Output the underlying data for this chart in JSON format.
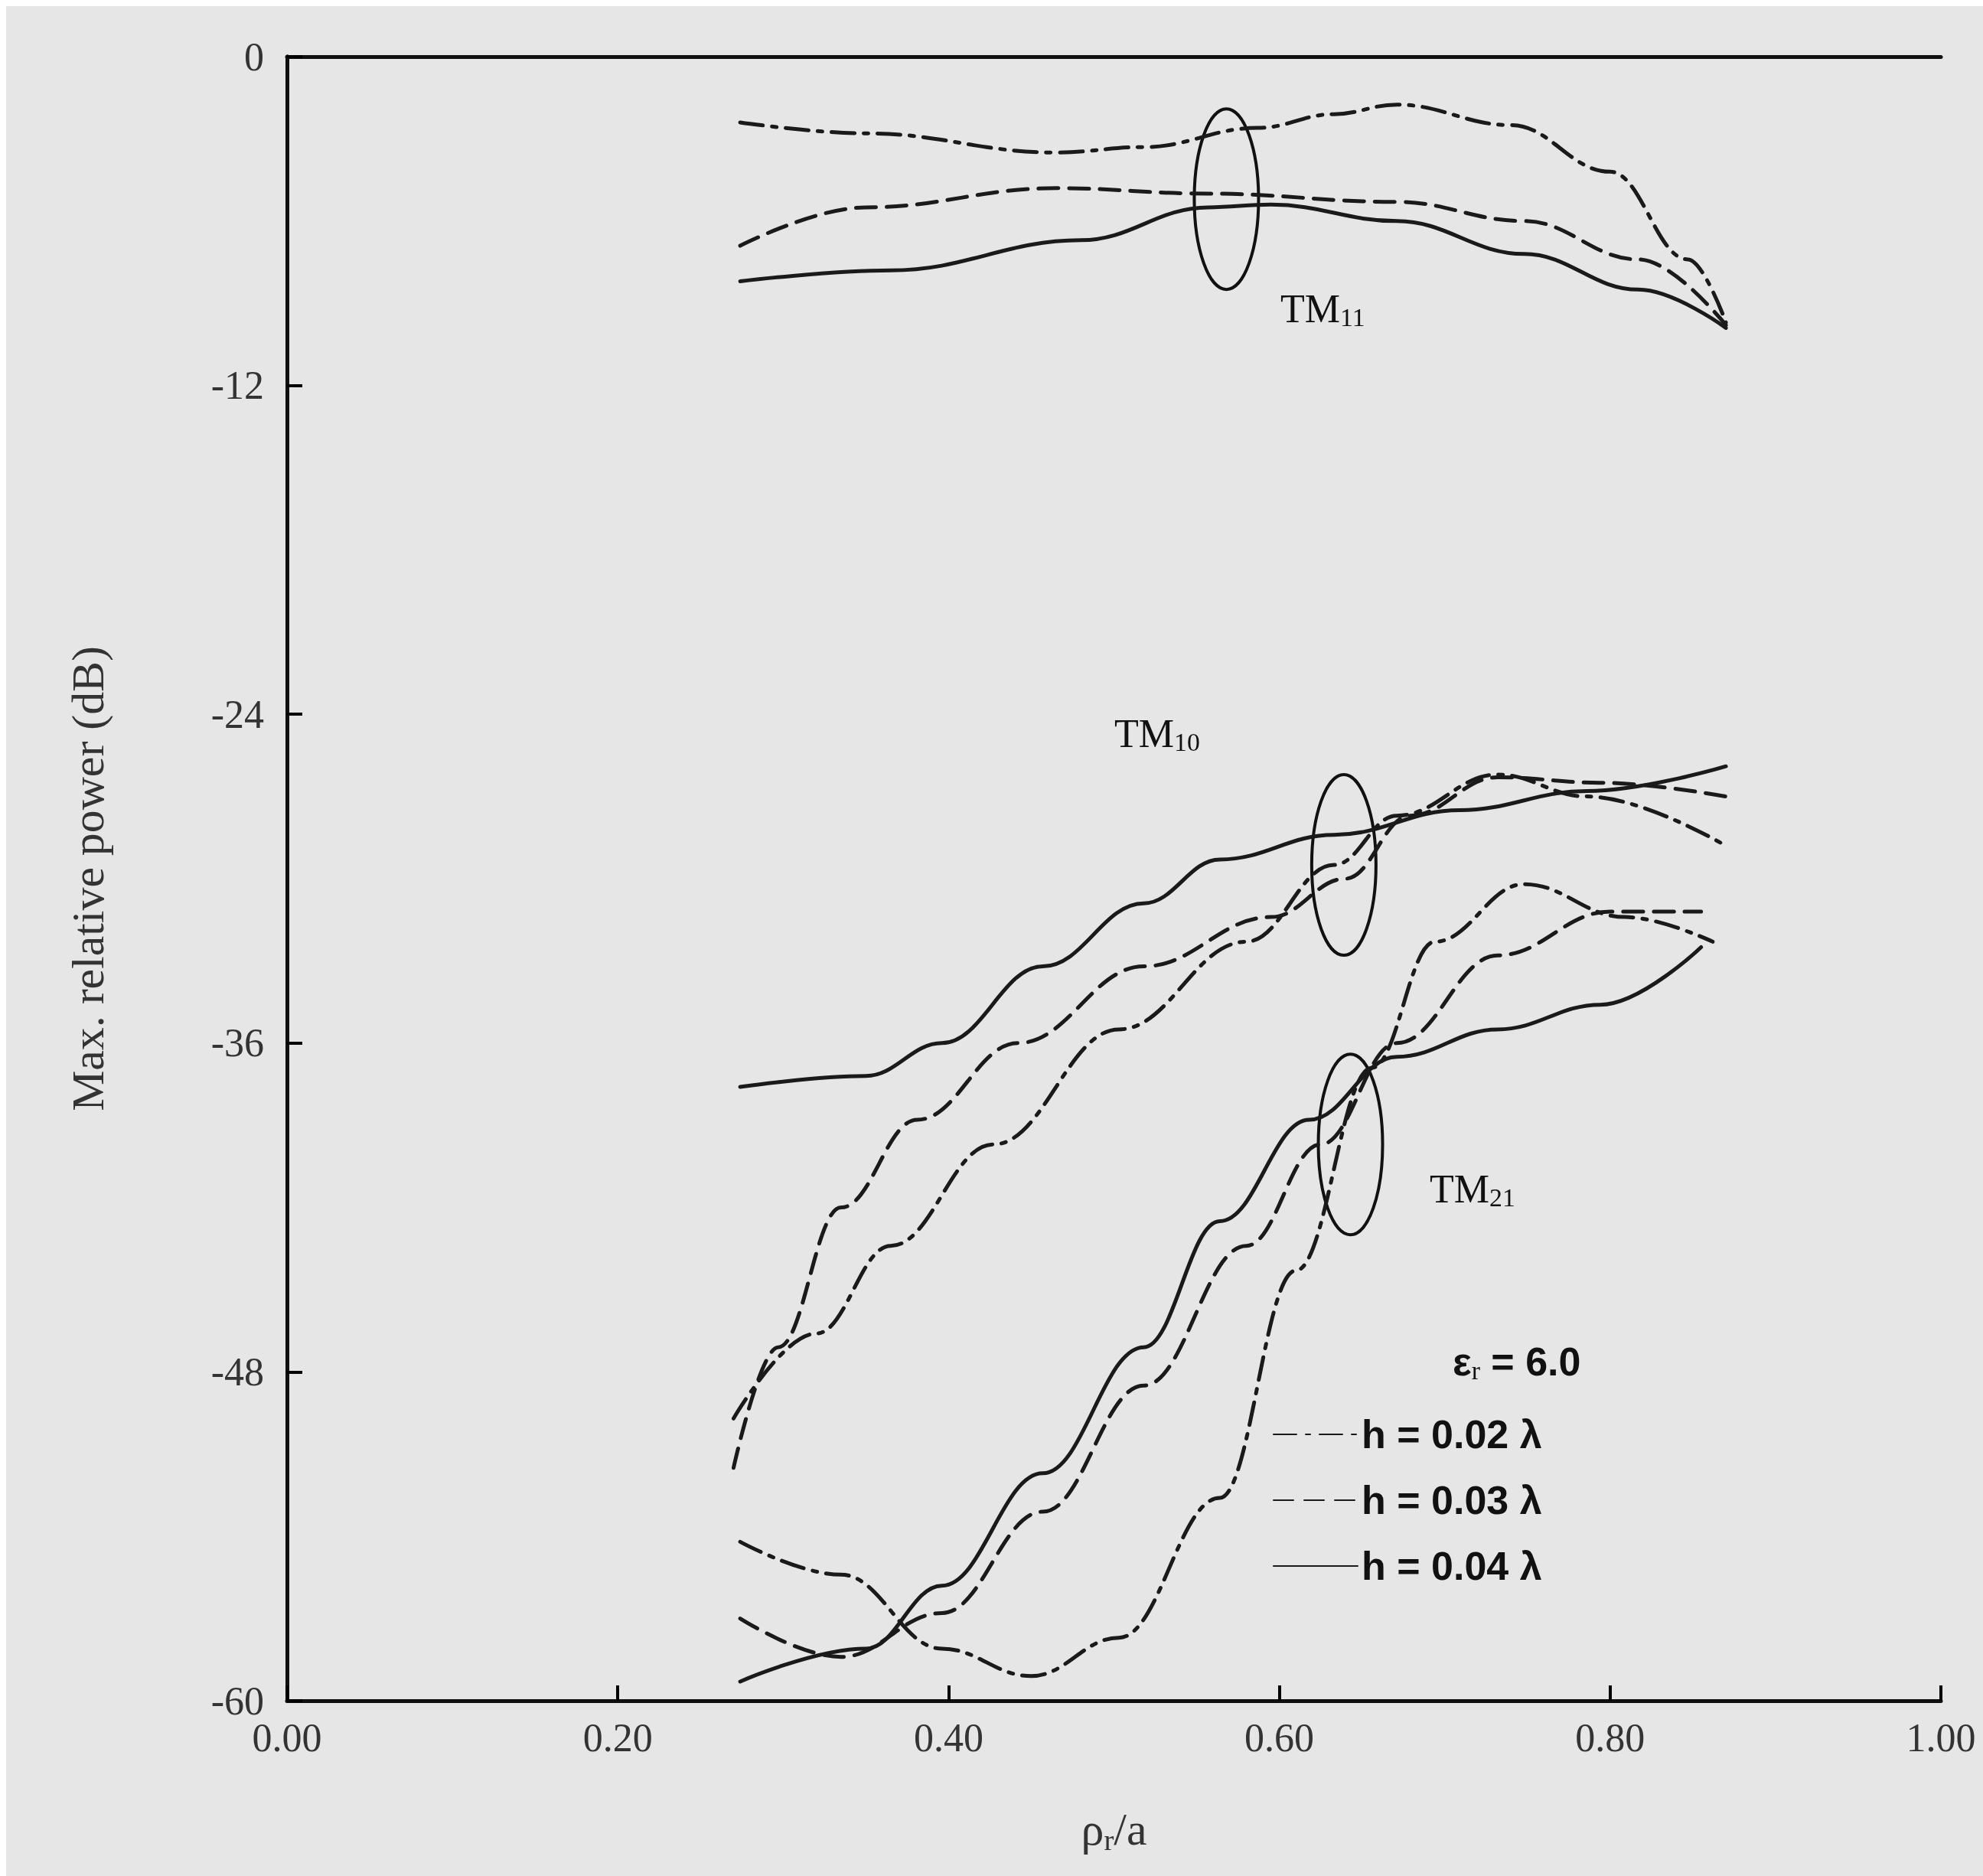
{
  "chart_data": {
    "type": "line",
    "xlabel": "ρ$_{r}$/a",
    "ylabel": "Max. relative power (dB)",
    "xlim": [
      0,
      1
    ],
    "xticks": [
      {
        "value": 0,
        "label": "0.00"
      },
      {
        "value": 0.2,
        "label": "0.20"
      },
      {
        "value": 0.4,
        "label": "0.40"
      },
      {
        "value": 0.6,
        "label": "0.60"
      },
      {
        "value": 0.8,
        "label": "0.80"
      },
      {
        "value": 1,
        "label": "1.00"
      }
    ],
    "ylim": [
      -60,
      0
    ],
    "yticks": [
      0,
      -12,
      -24,
      -36,
      -48,
      -60
    ],
    "grid": false,
    "legend": "bottom right",
    "legend_title": "ε$_{r}$ = 6.0",
    "marker": "none",
    "annotations": [
      "TM$_{11}$",
      "TM$_{10}$",
      "TM$_{21}$"
    ],
    "series": [
      {
        "name": "h = 0.02 λ",
        "color": "#1a1a1a",
        "line_style": "dashdot",
        "x": [
          0.274,
          0.35,
          0.465,
          0.518,
          0.587,
          0.633,
          0.671,
          0.74,
          0.8,
          0.847,
          0.87
        ],
        "values": [
          -2.4,
          -2.8,
          -3.5,
          -3.3,
          -2.6,
          -2.1,
          -1.75,
          -2.5,
          -4.2,
          -7.4,
          -9.7
        ]
      },
      {
        "name": "h = 0.03 λ",
        "color": "#1a1a1a",
        "line_style": "dashed",
        "x": [
          0.274,
          0.35,
          0.465,
          0.557,
          0.671,
          0.748,
          0.817,
          0.87
        ],
        "values": [
          -6.9,
          -5.5,
          -4.8,
          -5.0,
          -5.3,
          -6.0,
          -7.4,
          -9.8
        ]
      },
      {
        "name": "h = 0.04 λ",
        "color": "#1a1a1a",
        "line_style": "solid",
        "x": [
          0.274,
          0.365,
          0.48,
          0.557,
          0.595,
          0.671,
          0.748,
          0.817,
          0.87
        ],
        "values": [
          -8.2,
          -7.8,
          -6.7,
          -5.5,
          -5.4,
          -6.0,
          -7.2,
          -8.5,
          -9.9
        ]
      },
      {
        "color": "#1a1a1a",
        "line_style": "dashdot",
        "x": [
          0.27,
          0.32,
          0.365,
          0.427,
          0.503,
          0.58,
          0.633,
          0.671,
          0.732,
          0.786,
          0.87
        ],
        "values": [
          -49.7,
          -46.6,
          -43.4,
          -39.7,
          -35.5,
          -32.3,
          -29.5,
          -27.7,
          -26.2,
          -27.0,
          -28.8
        ]
      },
      {
        "color": "#1a1a1a",
        "line_style": "dashed",
        "x": [
          0.27,
          0.297,
          0.335,
          0.381,
          0.442,
          0.518,
          0.595,
          0.64,
          0.679,
          0.732,
          0.794,
          0.87
        ],
        "values": [
          -51.5,
          -47.1,
          -42.0,
          -38.8,
          -36.0,
          -33.2,
          -31.4,
          -30.0,
          -27.7,
          -26.3,
          -26.5,
          -27.0
        ]
      },
      {
        "color": "#1a1a1a",
        "line_style": "solid",
        "x": [
          0.274,
          0.35,
          0.396,
          0.457,
          0.518,
          0.564,
          0.633,
          0.709,
          0.786,
          0.87
        ],
        "values": [
          -37.6,
          -37.2,
          -36.0,
          -33.2,
          -30.9,
          -29.3,
          -28.4,
          -27.5,
          -26.8,
          -25.9
        ]
      },
      {
        "color": "#1a1a1a",
        "line_style": "dashdot",
        "x": [
          0.274,
          0.335,
          0.396,
          0.45,
          0.503,
          0.564,
          0.61,
          0.656,
          0.694,
          0.748,
          0.809,
          0.862
        ],
        "values": [
          -54.2,
          -55.4,
          -58.1,
          -59.1,
          -57.7,
          -52.6,
          -44.3,
          -36.9,
          -32.3,
          -30.2,
          -31.4,
          -32.3
        ]
      },
      {
        "color": "#1a1a1a",
        "line_style": "dashed",
        "x": [
          0.274,
          0.335,
          0.396,
          0.457,
          0.518,
          0.58,
          0.625,
          0.671,
          0.732,
          0.8,
          0.855
        ],
        "values": [
          -57.0,
          -58.4,
          -56.8,
          -53.1,
          -48.5,
          -43.4,
          -39.7,
          -36.0,
          -32.8,
          -31.2,
          -31.2
        ]
      },
      {
        "color": "#1a1a1a",
        "line_style": "solid",
        "x": [
          0.274,
          0.35,
          0.396,
          0.457,
          0.518,
          0.564,
          0.618,
          0.671,
          0.732,
          0.794,
          0.855
        ],
        "values": [
          -59.3,
          -58.1,
          -55.8,
          -51.7,
          -47.1,
          -42.5,
          -38.8,
          -36.5,
          -35.5,
          -34.6,
          -32.5
        ]
      }
    ]
  }
}
